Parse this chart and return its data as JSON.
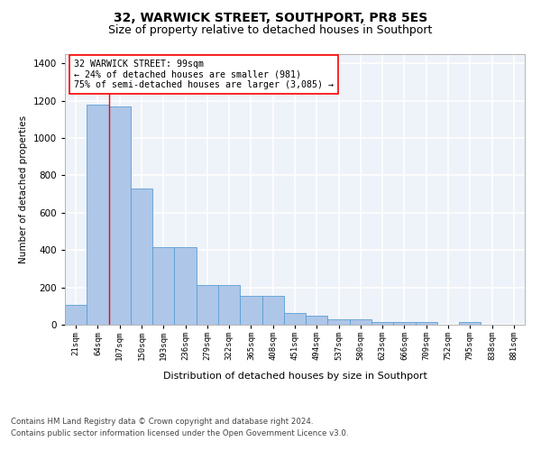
{
  "title": "32, WARWICK STREET, SOUTHPORT, PR8 5ES",
  "subtitle": "Size of property relative to detached houses in Southport",
  "xlabel": "Distribution of detached houses by size in Southport",
  "ylabel": "Number of detached properties",
  "bin_labels": [
    "21sqm",
    "64sqm",
    "107sqm",
    "150sqm",
    "193sqm",
    "236sqm",
    "279sqm",
    "322sqm",
    "365sqm",
    "408sqm",
    "451sqm",
    "494sqm",
    "537sqm",
    "580sqm",
    "623sqm",
    "666sqm",
    "709sqm",
    "752sqm",
    "795sqm",
    "838sqm",
    "881sqm"
  ],
  "bar_values": [
    107,
    1180,
    1170,
    730,
    415,
    415,
    215,
    215,
    155,
    155,
    65,
    50,
    30,
    30,
    15,
    15,
    15,
    0,
    15,
    0,
    0
  ],
  "bar_color": "#aec6e8",
  "bar_edge_color": "#5a9fd4",
  "red_line_x": 1.5,
  "annotation_text": "32 WARWICK STREET: 99sqm\n← 24% of detached houses are smaller (981)\n75% of semi-detached houses are larger (3,085) →",
  "annotation_box_color": "white",
  "annotation_border_color": "red",
  "background_color": "#eef2f9",
  "grid_color": "white",
  "ylim": [
    0,
    1450
  ],
  "yticks": [
    0,
    200,
    400,
    600,
    800,
    1000,
    1200,
    1400
  ],
  "title_fontsize": 10,
  "subtitle_fontsize": 9,
  "footer_line1": "Contains HM Land Registry data © Crown copyright and database right 2024.",
  "footer_line2": "Contains public sector information licensed under the Open Government Licence v3.0."
}
